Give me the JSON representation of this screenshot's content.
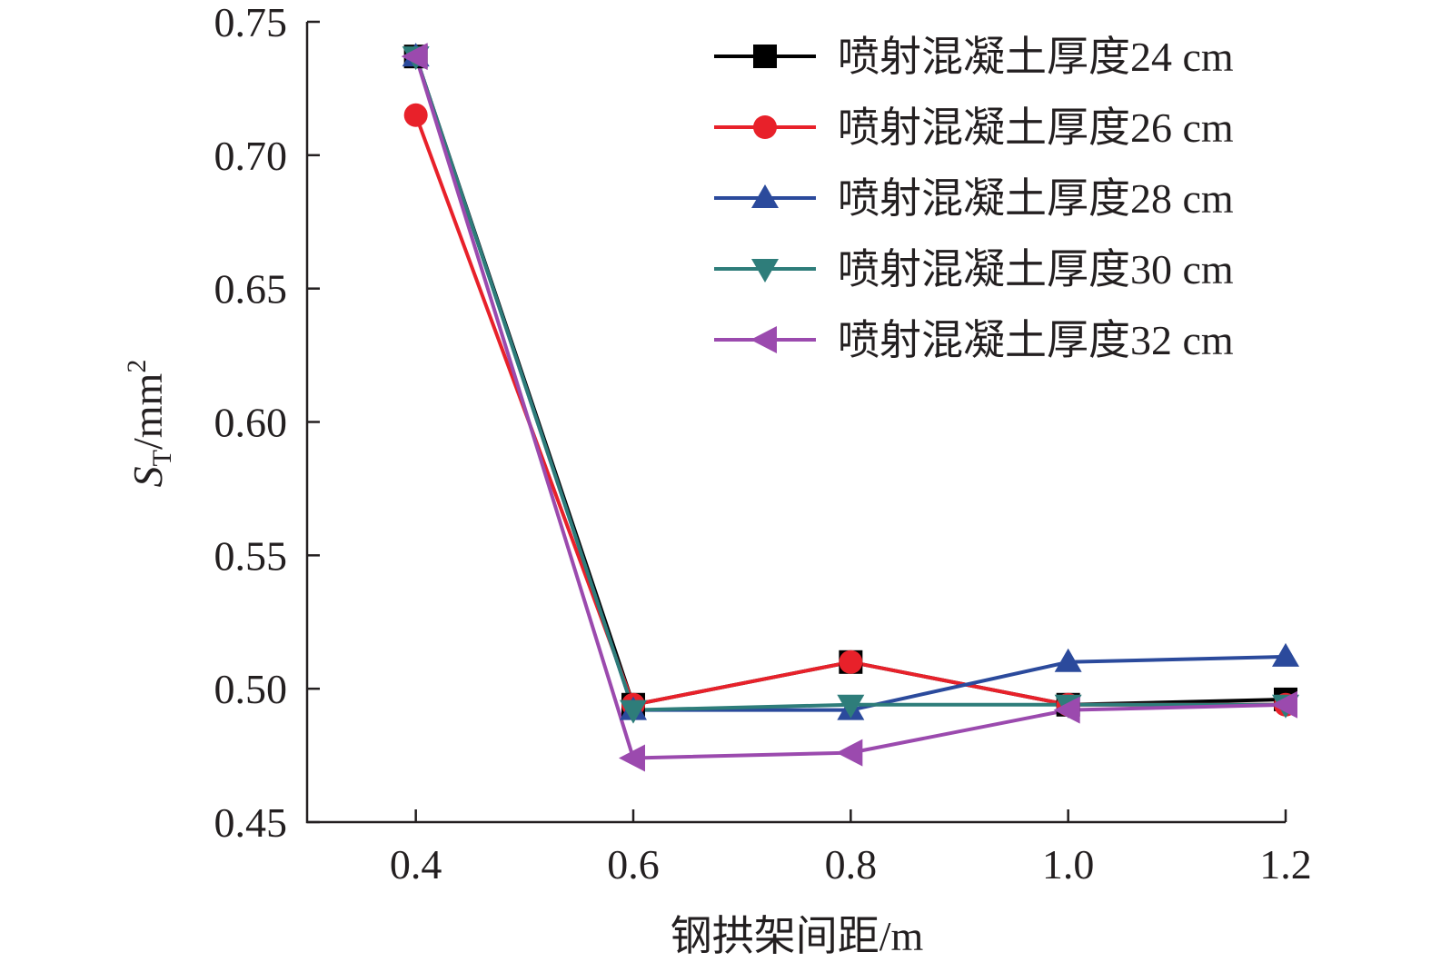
{
  "chart_data": {
    "type": "line",
    "title": "",
    "xlabel": "钢拱架间距/m",
    "ylabel": {
      "symbol": "S",
      "subscript": "T",
      "unit": "/mm",
      "superscript": "2"
    },
    "x": [
      0.4,
      0.6,
      0.8,
      1.0,
      1.2
    ],
    "x_tick_labels": [
      "0.4",
      "0.6",
      "0.8",
      "1.0",
      "1.2"
    ],
    "y_ticks": [
      0.45,
      0.5,
      0.55,
      0.6,
      0.65,
      0.7,
      0.75
    ],
    "y_tick_labels": [
      "0.45",
      "0.50",
      "0.55",
      "0.60",
      "0.65",
      "0.70",
      "0.75"
    ],
    "xlim": [
      0.3,
      1.2
    ],
    "ylim": [
      0.45,
      0.75
    ],
    "grid": false,
    "legend_position": "top-right",
    "series": [
      {
        "name": "喷射混凝土厚度24 cm",
        "color": "#000000",
        "marker": "square",
        "values": [
          0.737,
          0.494,
          0.51,
          0.494,
          0.496
        ]
      },
      {
        "name": "喷射混凝土厚度26 cm",
        "color": "#e8212a",
        "marker": "circle",
        "values": [
          0.715,
          0.494,
          0.51,
          0.494,
          0.494
        ]
      },
      {
        "name": "喷射混凝土厚度28 cm",
        "color": "#2b4a9c",
        "marker": "triangle-up",
        "values": [
          0.737,
          0.492,
          0.492,
          0.51,
          0.512
        ]
      },
      {
        "name": "喷射混凝土厚度30 cm",
        "color": "#2e7d7a",
        "marker": "triangle-down",
        "values": [
          0.737,
          0.492,
          0.494,
          0.494,
          0.494
        ]
      },
      {
        "name": "喷射混凝土厚度32 cm",
        "color": "#9b4aae",
        "marker": "triangle-left",
        "values": [
          0.737,
          0.474,
          0.476,
          0.492,
          0.494
        ]
      }
    ]
  }
}
